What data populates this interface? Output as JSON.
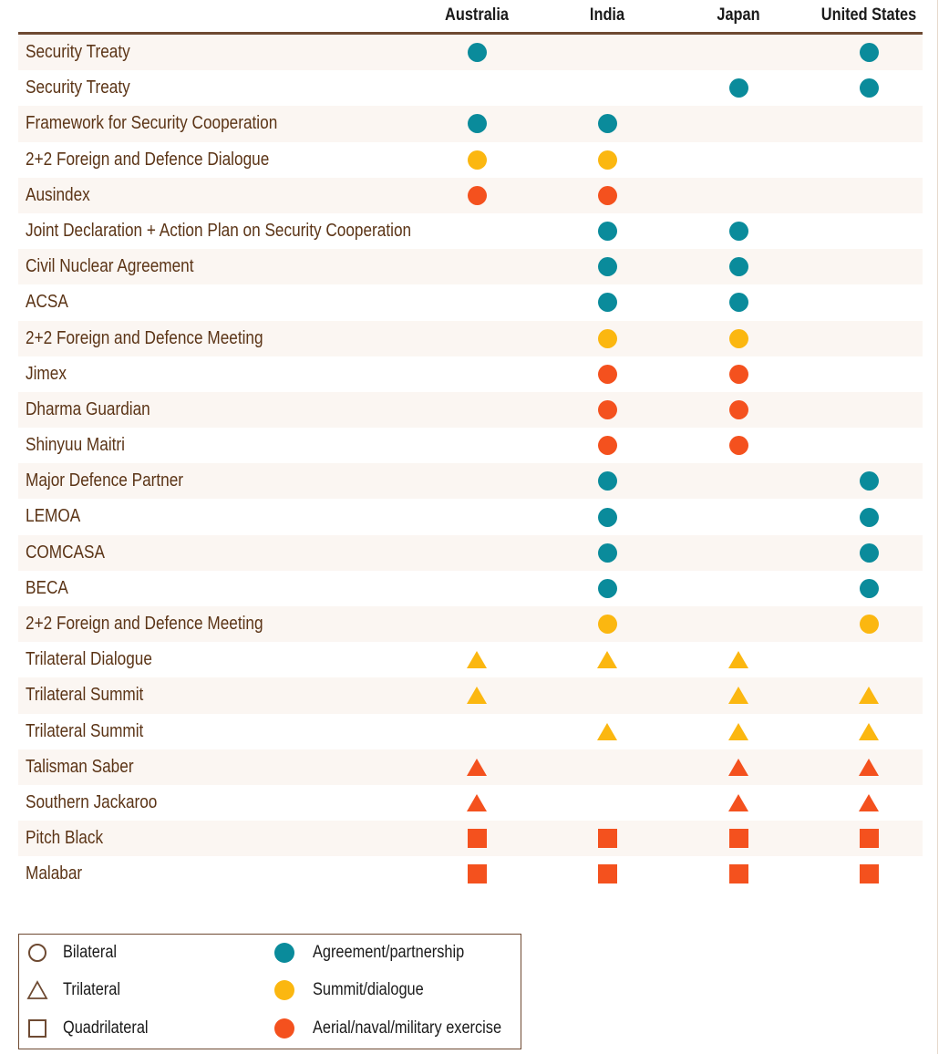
{
  "columns": [
    "Australia",
    "India",
    "Japan",
    "United States"
  ],
  "colors": {
    "agreement": "#0a8b9b",
    "summit": "#fbb710",
    "exercise": "#f4511e"
  },
  "rows": [
    {
      "label": "Security Treaty",
      "shape": "circle",
      "type": "agreement",
      "marks": [
        true,
        false,
        false,
        true
      ]
    },
    {
      "label": "Security Treaty",
      "shape": "circle",
      "type": "agreement",
      "marks": [
        false,
        false,
        true,
        true
      ]
    },
    {
      "label": "Framework for Security Cooperation",
      "shape": "circle",
      "type": "agreement",
      "marks": [
        true,
        true,
        false,
        false
      ]
    },
    {
      "label": "2+2 Foreign and Defence Dialogue",
      "shape": "circle",
      "type": "summit",
      "marks": [
        true,
        true,
        false,
        false
      ]
    },
    {
      "label": "Ausindex",
      "shape": "circle",
      "type": "exercise",
      "marks": [
        true,
        true,
        false,
        false
      ]
    },
    {
      "label": "Joint Declaration + Action Plan on Security Cooperation",
      "shape": "circle",
      "type": "agreement",
      "marks": [
        false,
        true,
        true,
        false
      ]
    },
    {
      "label": "Civil Nuclear Agreement",
      "shape": "circle",
      "type": "agreement",
      "marks": [
        false,
        true,
        true,
        false
      ]
    },
    {
      "label": "ACSA",
      "shape": "circle",
      "type": "agreement",
      "marks": [
        false,
        true,
        true,
        false
      ]
    },
    {
      "label": "2+2 Foreign and Defence Meeting",
      "shape": "circle",
      "type": "summit",
      "marks": [
        false,
        true,
        true,
        false
      ]
    },
    {
      "label": "Jimex",
      "shape": "circle",
      "type": "exercise",
      "marks": [
        false,
        true,
        true,
        false
      ]
    },
    {
      "label": "Dharma Guardian",
      "shape": "circle",
      "type": "exercise",
      "marks": [
        false,
        true,
        true,
        false
      ]
    },
    {
      "label": "Shinyuu Maitri",
      "shape": "circle",
      "type": "exercise",
      "marks": [
        false,
        true,
        true,
        false
      ]
    },
    {
      "label": "Major Defence Partner",
      "shape": "circle",
      "type": "agreement",
      "marks": [
        false,
        true,
        false,
        true
      ]
    },
    {
      "label": "LEMOA",
      "shape": "circle",
      "type": "agreement",
      "marks": [
        false,
        true,
        false,
        true
      ]
    },
    {
      "label": "COMCASA",
      "shape": "circle",
      "type": "agreement",
      "marks": [
        false,
        true,
        false,
        true
      ]
    },
    {
      "label": "BECA",
      "shape": "circle",
      "type": "agreement",
      "marks": [
        false,
        true,
        false,
        true
      ]
    },
    {
      "label": "2+2 Foreign and Defence Meeting",
      "shape": "circle",
      "type": "summit",
      "marks": [
        false,
        true,
        false,
        true
      ]
    },
    {
      "label": "Trilateral Dialogue",
      "shape": "triangle",
      "type": "summit",
      "marks": [
        true,
        true,
        true,
        false
      ]
    },
    {
      "label": "Trilateral Summit",
      "shape": "triangle",
      "type": "summit",
      "marks": [
        true,
        false,
        true,
        true
      ]
    },
    {
      "label": "Trilateral Summit",
      "shape": "triangle",
      "type": "summit",
      "marks": [
        false,
        true,
        true,
        true
      ]
    },
    {
      "label": "Talisman Saber",
      "shape": "triangle",
      "type": "exercise",
      "marks": [
        true,
        false,
        true,
        true
      ]
    },
    {
      "label": "Southern Jackaroo",
      "shape": "triangle",
      "type": "exercise",
      "marks": [
        true,
        false,
        true,
        true
      ]
    },
    {
      "label": "Pitch Black",
      "shape": "square",
      "type": "exercise",
      "marks": [
        true,
        true,
        true,
        true
      ]
    },
    {
      "label": "Malabar",
      "shape": "square",
      "type": "exercise",
      "marks": [
        true,
        true,
        true,
        true
      ]
    }
  ],
  "legend": {
    "shapes": [
      {
        "label": "Bilateral",
        "icon": "outline-circle-icon"
      },
      {
        "label": "Trilateral",
        "icon": "outline-triangle-icon"
      },
      {
        "label": "Quadrilateral",
        "icon": "outline-square-icon"
      }
    ],
    "types": [
      {
        "label": "Agreement/partnership",
        "color": "#0a8b9b"
      },
      {
        "label": "Summit/dialogue",
        "color": "#fbb710"
      },
      {
        "label": "Aerial/naval/military exercise",
        "color": "#f4511e"
      }
    ]
  }
}
